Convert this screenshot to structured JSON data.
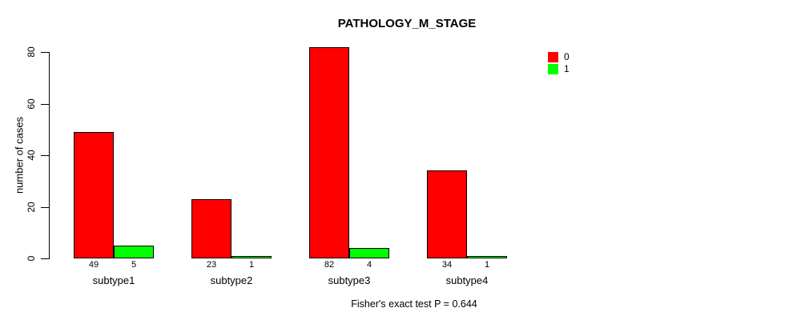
{
  "title": "PATHOLOGY_M_STAGE",
  "footer": "Fisher's exact test P = 0.644",
  "chart_data": {
    "type": "bar",
    "title": "PATHOLOGY_M_STAGE",
    "categories": [
      "subtype1",
      "subtype2",
      "subtype3",
      "subtype4"
    ],
    "series": [
      {
        "name": "0",
        "color": "#ff0000",
        "values": [
          49,
          23,
          82,
          34
        ]
      },
      {
        "name": "1",
        "color": "#00ff00",
        "values": [
          5,
          1,
          4,
          1
        ]
      }
    ],
    "bar_value_labels": [
      [
        49,
        5
      ],
      [
        23,
        1
      ],
      [
        82,
        4
      ],
      [
        34,
        1
      ]
    ],
    "xlabel": "",
    "ylabel": "number of cases",
    "yticks": [
      0,
      20,
      40,
      60,
      80
    ],
    "ylim": [
      0,
      80
    ],
    "grid": false,
    "legend": {
      "position": "top-right",
      "entries": [
        {
          "label": "0",
          "color": "#ff0000"
        },
        {
          "label": "1",
          "color": "#00ff00"
        }
      ]
    },
    "annotation": "Fisher's exact test P = 0.644"
  }
}
